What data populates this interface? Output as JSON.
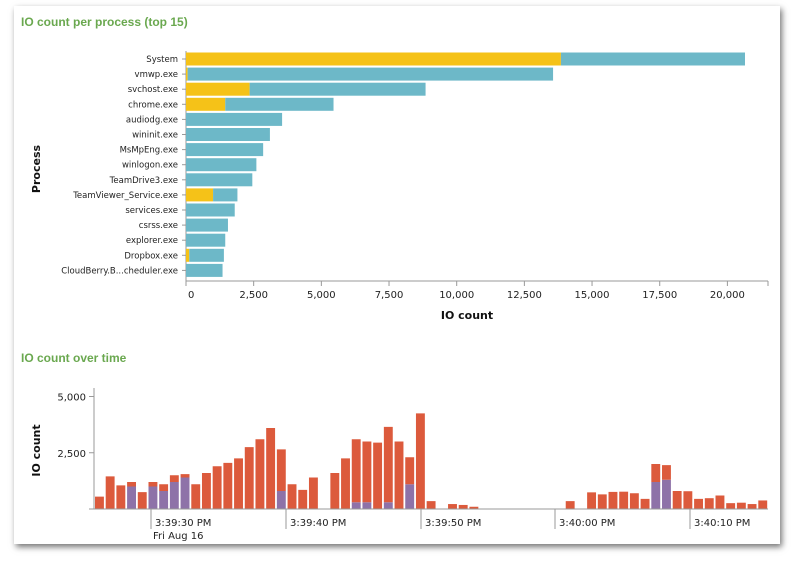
{
  "panels": {
    "top_title": "IO count per process (top 15)",
    "bottom_title": "IO count over time"
  },
  "colors": {
    "series_a": "#f5c218",
    "series_b": "#6db8c8",
    "time_a": "#dc5a3c",
    "time_b": "#8e72a8",
    "axis": "#999999"
  },
  "chart_data": [
    {
      "type": "bar",
      "orientation": "horizontal",
      "stacked": true,
      "title": "IO count per process (top 15)",
      "xlabel": "IO count",
      "ylabel": "Process",
      "xlim": [
        0,
        21500
      ],
      "xticks": [
        0,
        2500,
        5000,
        7500,
        10000,
        12500,
        15000,
        17500,
        20000
      ],
      "xtick_labels": [
        "0",
        "2,500",
        "5,000",
        "7,500",
        "10,000",
        "12,500",
        "15,000",
        "17,500",
        "20,000"
      ],
      "categories": [
        "System",
        "vmwp.exe",
        "svchost.exe",
        "chrome.exe",
        "audiodg.exe",
        "wininit.exe",
        "MsMpEng.exe",
        "winlogon.exe",
        "TeamDrive3.exe",
        "TeamViewer_Service.exe",
        "services.exe",
        "csrss.exe",
        "explorer.exe",
        "Dropbox.exe",
        "CloudBerry.B...cheduler.exe"
      ],
      "series": [
        {
          "values": [
            13850,
            60,
            2350,
            1450,
            0,
            0,
            0,
            0,
            0,
            1000,
            0,
            0,
            0,
            120,
            0
          ]
        },
        {
          "values": [
            6800,
            13500,
            6500,
            4000,
            3550,
            3100,
            2850,
            2600,
            2450,
            900,
            1800,
            1550,
            1450,
            1280,
            1350
          ]
        }
      ]
    },
    {
      "type": "bar",
      "stacked": true,
      "title": "IO count over time",
      "ylabel": "IO count",
      "ylim": [
        0,
        5200
      ],
      "yticks": [
        0,
        2500,
        5000
      ],
      "ytick_labels": [
        "",
        "2,500",
        "5,000"
      ],
      "xtick_labels": [
        "3:39:30 PM",
        "3:39:40 PM",
        "3:39:50 PM",
        "3:40:00 PM",
        "3:40:10 PM"
      ],
      "x_sublabel": "Fri Aug 16",
      "series": [
        {
          "values": [
            0,
            0,
            0,
            1000,
            0,
            1000,
            800,
            1200,
            1400,
            0,
            0,
            0,
            0,
            0,
            0,
            0,
            0,
            800,
            0,
            0,
            0,
            0,
            0,
            0,
            300,
            300,
            0,
            300,
            0,
            1100,
            0,
            0,
            0,
            0,
            0,
            0,
            0,
            0,
            0,
            0,
            0,
            0,
            0,
            0,
            0,
            0,
            0,
            0,
            0,
            0,
            0,
            0,
            1200,
            1300,
            0,
            0,
            0,
            0,
            0,
            0,
            0,
            0,
            0
          ]
        },
        {
          "values": [
            550,
            1450,
            1050,
            200,
            750,
            200,
            300,
            300,
            150,
            1100,
            1600,
            1900,
            2050,
            2250,
            2750,
            3100,
            3600,
            1850,
            1100,
            850,
            1400,
            0,
            1600,
            2250,
            2800,
            2700,
            2950,
            3350,
            3000,
            1200,
            4250,
            350,
            0,
            220,
            180,
            100,
            0,
            0,
            0,
            0,
            0,
            0,
            0,
            0,
            350,
            0,
            740,
            650,
            760,
            770,
            700,
            450,
            800,
            650,
            800,
            790,
            450,
            480,
            600,
            260,
            280,
            220,
            380
          ]
        }
      ]
    }
  ]
}
